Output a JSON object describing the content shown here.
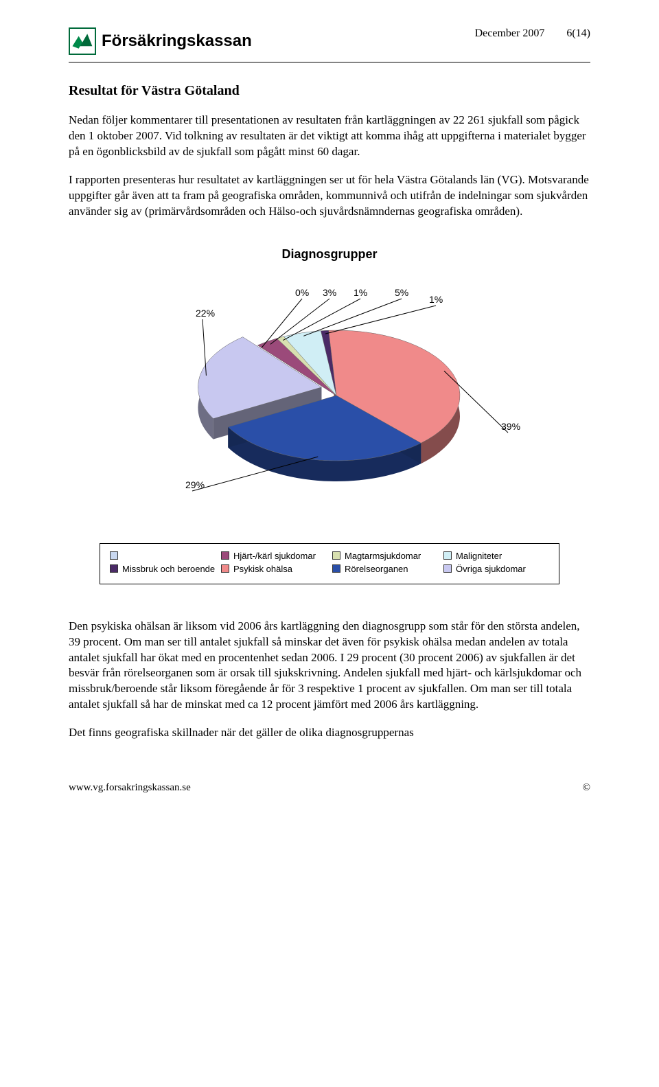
{
  "header": {
    "brand": "Försäkringskassan",
    "date": "December 2007",
    "page_ref": "6(14)"
  },
  "section_title": "Resultat för Västra Götaland",
  "paragraphs": {
    "p1": "Nedan följer kommentarer till presentationen av resultaten från kartläggningen av 22 261 sjukfall som pågick den 1 oktober 2007. Vid tolkning av resultaten är det viktigt att komma ihåg att uppgifterna i materialet bygger på en ögonblicksbild av de sjukfall som pågått minst 60 dagar.",
    "p2": "I rapporten presenteras hur resultatet av kartläggningen ser ut för hela Västra Götalands län (VG). Motsvarande uppgifter går även att ta fram på geografiska områden, kommunnivå och utifrån de indelningar som sjukvården använder sig av (primärvårdsområden och Hälso-och sjuvårdsnämndernas geografiska områden).",
    "p3": "Den psykiska ohälsan är liksom vid 2006 års kartläggning den diagnosgrupp som står för den största andelen, 39 procent. Om man ser till antalet sjukfall så minskar det även för psykisk ohälsa medan andelen av totala antalet sjukfall har ökat med en procentenhet sedan 2006.  I 29 procent (30 procent 2006) av sjukfallen är det besvär från rörelseorganen som är orsak till sjukskrivning. Andelen sjukfall med hjärt- och kärlsjukdomar och missbruk/beroende står liksom föregående år för 3 respektive 1 procent av sjukfallen. Om man ser till totala antalet sjukfall så har de minskat med ca 12 procent jämfört med 2006 års kartläggning.",
    "p4": "Det finns geografiska skillnader när det gäller de olika diagnosgruppernas"
  },
  "chart": {
    "title": "Diagnosgrupper",
    "type": "pie-3d",
    "background": "#ffffff",
    "title_fontsize": 18,
    "label_fontsize": 14,
    "slices": [
      {
        "label": "0%",
        "value": 0,
        "color": "#c9d8f0"
      },
      {
        "label": "3%",
        "value": 3,
        "color": "#9b4a7a"
      },
      {
        "label": "1%",
        "value": 1,
        "color": "#d8e0b0"
      },
      {
        "label": "5%",
        "value": 5,
        "color": "#d0eef5"
      },
      {
        "label": "1%",
        "value": 1,
        "color": "#4a2a66"
      },
      {
        "label": "39%",
        "value": 39,
        "color": "#f08a8a"
      },
      {
        "label": "29%",
        "value": 29,
        "color": "#2a4fa8"
      },
      {
        "label": "22%",
        "value": 22,
        "color": "#c8c8f0"
      }
    ],
    "depth_shade": "#333355",
    "explode_index": 7
  },
  "legend": {
    "items": [
      {
        "label": "",
        "color": "#c9d8f0"
      },
      {
        "label": "Hjärt-/kärl sjukdomar",
        "color": "#9b4a7a"
      },
      {
        "label": "Magtarmsjukdomar",
        "color": "#d8e0b0"
      },
      {
        "label": "Maligniteter",
        "color": "#d0eef5"
      },
      {
        "label": "Missbruk och beroende",
        "color": "#4a2a66"
      },
      {
        "label": "Psykisk ohälsa",
        "color": "#f08a8a"
      },
      {
        "label": "Rörelseorganen",
        "color": "#2a4fa8"
      },
      {
        "label": "Övriga sjukdomar",
        "color": "#c8c8f0"
      }
    ]
  },
  "footer": {
    "url": "www.vg.forsakringskassan.se",
    "copyright": "©"
  }
}
